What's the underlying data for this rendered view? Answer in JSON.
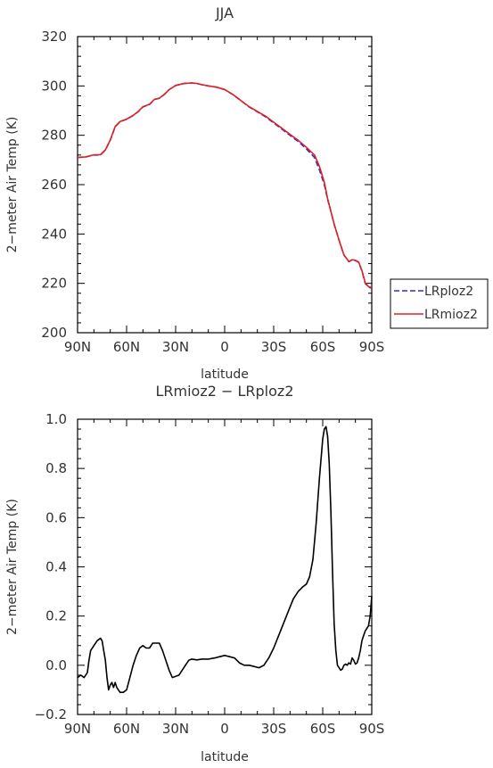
{
  "chart_data": [
    {
      "type": "line",
      "title": "JJA",
      "xlabel": "latitude",
      "ylabel": "2−meter Air Temp (K)",
      "xlim": [
        90,
        -90
      ],
      "ylim": [
        200,
        320
      ],
      "x_ticks": [
        90,
        60,
        30,
        0,
        -30,
        -60,
        -90
      ],
      "x_tick_labels": [
        "90N",
        "60N",
        "30N",
        "0",
        "30S",
        "60S",
        "90S"
      ],
      "y_ticks": [
        200,
        220,
        240,
        260,
        280,
        300,
        320
      ],
      "y_tick_labels": [
        "200",
        "220",
        "240",
        "260",
        "280",
        "300",
        "320"
      ],
      "legend_position": "right",
      "series": [
        {
          "name": "LRploz2",
          "color": "#2b2bd6",
          "style": "dashed",
          "x": [
            90,
            85,
            80,
            76,
            73,
            70,
            67,
            64,
            60,
            56,
            53,
            50,
            46,
            43,
            40,
            37,
            34,
            30,
            25,
            20,
            17,
            14,
            10,
            5,
            0,
            -5,
            -10,
            -15,
            -20,
            -25,
            -30,
            -35,
            -40,
            -45,
            -50,
            -55,
            -58,
            -61,
            -63,
            -65,
            -67,
            -70,
            -73,
            -76,
            -78,
            -80,
            -82,
            -84,
            -86,
            -88,
            -90
          ],
          "y": [
            271,
            271.2,
            272,
            272,
            274,
            278,
            283.5,
            285.5,
            286.5,
            288,
            289.5,
            291.5,
            292.5,
            294.5,
            295,
            296.5,
            298.5,
            300.2,
            301,
            301.2,
            301,
            300.5,
            300,
            299.5,
            298.5,
            296.5,
            294,
            291.5,
            289.5,
            287.5,
            285,
            282.5,
            280,
            277.5,
            274.5,
            271,
            266,
            260,
            254,
            249,
            244,
            237.5,
            231.5,
            228.8,
            229.5,
            229.2,
            228.5,
            225,
            220,
            218.5,
            218
          ]
        },
        {
          "name": "LRmioz2",
          "color": "#e02020",
          "style": "solid",
          "x": [
            90,
            85,
            80,
            76,
            73,
            70,
            67,
            64,
            60,
            56,
            53,
            50,
            46,
            43,
            40,
            37,
            34,
            30,
            25,
            20,
            17,
            14,
            10,
            5,
            0,
            -5,
            -10,
            -15,
            -20,
            -25,
            -30,
            -35,
            -40,
            -45,
            -50,
            -55,
            -58,
            -61,
            -63,
            -65,
            -67,
            -70,
            -73,
            -76,
            -78,
            -80,
            -82,
            -84,
            -86,
            -88,
            -90
          ],
          "y": [
            271.05,
            271.25,
            272.1,
            272.1,
            274.1,
            278.1,
            283.55,
            285.6,
            286.55,
            288.05,
            289.55,
            291.55,
            292.55,
            294.55,
            295.05,
            296.55,
            298.5,
            300.2,
            301,
            301.2,
            301,
            300.5,
            300,
            299.5,
            298.55,
            296.55,
            294.05,
            291.6,
            289.65,
            287.75,
            285.3,
            282.85,
            280.4,
            277.95,
            275.1,
            272,
            267.4,
            260.9,
            254.3,
            249.1,
            244.05,
            237.5,
            231.5,
            228.85,
            229.55,
            229.3,
            228.65,
            225.15,
            220.2,
            218.7,
            218.25
          ]
        }
      ]
    },
    {
      "type": "line",
      "title": "LRmioz2 − LRploz2",
      "xlabel": "latitude",
      "ylabel": "2−meter Air Temp (K)",
      "xlim": [
        90,
        -90
      ],
      "ylim": [
        -0.2,
        1.0
      ],
      "x_ticks": [
        90,
        60,
        30,
        0,
        -30,
        -60,
        -90
      ],
      "x_tick_labels": [
        "90N",
        "60N",
        "30N",
        "0",
        "30S",
        "60S",
        "90S"
      ],
      "y_ticks": [
        -0.2,
        0.0,
        0.2,
        0.4,
        0.6,
        0.8,
        1.0
      ],
      "y_tick_labels": [
        "−0.2",
        "0.0",
        "0.2",
        "0.4",
        "0.6",
        "0.8",
        "1.0"
      ],
      "series": [
        {
          "color": "#000000",
          "style": "solid",
          "x": [
            90,
            88,
            86,
            84,
            83,
            82,
            80,
            78,
            76,
            75,
            74,
            73,
            72,
            71,
            70,
            69,
            68,
            67,
            66,
            65,
            64,
            62,
            60,
            58,
            56,
            54,
            52,
            50,
            48,
            46,
            44,
            42,
            40,
            38,
            36,
            34,
            32,
            30,
            28,
            26,
            24,
            22,
            20,
            17,
            14,
            10,
            6,
            3,
            0,
            -3,
            -6,
            -9,
            -12,
            -15,
            -18,
            -21,
            -24,
            -27,
            -30,
            -33,
            -36,
            -39,
            -42,
            -45,
            -48,
            -50,
            -52,
            -54,
            -56,
            -58,
            -60,
            -61,
            -62,
            -63,
            -64,
            -65,
            -66,
            -67,
            -68,
            -69,
            -70,
            -71,
            -72,
            -73,
            -74,
            -75,
            -76,
            -77,
            -78,
            -79,
            -80,
            -81,
            -82,
            -83,
            -84,
            -85,
            -86,
            -87,
            -88,
            -89,
            -90
          ],
          "y": [
            -0.05,
            -0.04,
            -0.05,
            -0.03,
            0.02,
            0.06,
            0.08,
            0.1,
            0.11,
            0.1,
            0.06,
            0.02,
            -0.05,
            -0.1,
            -0.08,
            -0.07,
            -0.09,
            -0.07,
            -0.09,
            -0.1,
            -0.11,
            -0.11,
            -0.1,
            -0.05,
            0.0,
            0.04,
            0.07,
            0.08,
            0.07,
            0.07,
            0.09,
            0.09,
            0.09,
            0.06,
            0.02,
            -0.02,
            -0.05,
            -0.045,
            -0.04,
            -0.02,
            0.0,
            0.02,
            0.025,
            0.022,
            0.025,
            0.025,
            0.03,
            0.035,
            0.04,
            0.035,
            0.03,
            0.01,
            0.0,
            0.0,
            -0.005,
            -0.01,
            0.0,
            0.03,
            0.07,
            0.12,
            0.17,
            0.22,
            0.27,
            0.3,
            0.32,
            0.33,
            0.36,
            0.43,
            0.58,
            0.76,
            0.92,
            0.96,
            0.97,
            0.93,
            0.82,
            0.62,
            0.38,
            0.17,
            0.06,
            0.0,
            -0.01,
            -0.02,
            -0.015,
            0.0,
            0.005,
            0.0,
            0.01,
            0.005,
            0.03,
            0.02,
            0.005,
            0.01,
            0.03,
            0.06,
            0.1,
            0.12,
            0.14,
            0.15,
            0.16,
            0.2,
            0.28
          ]
        }
      ]
    }
  ]
}
